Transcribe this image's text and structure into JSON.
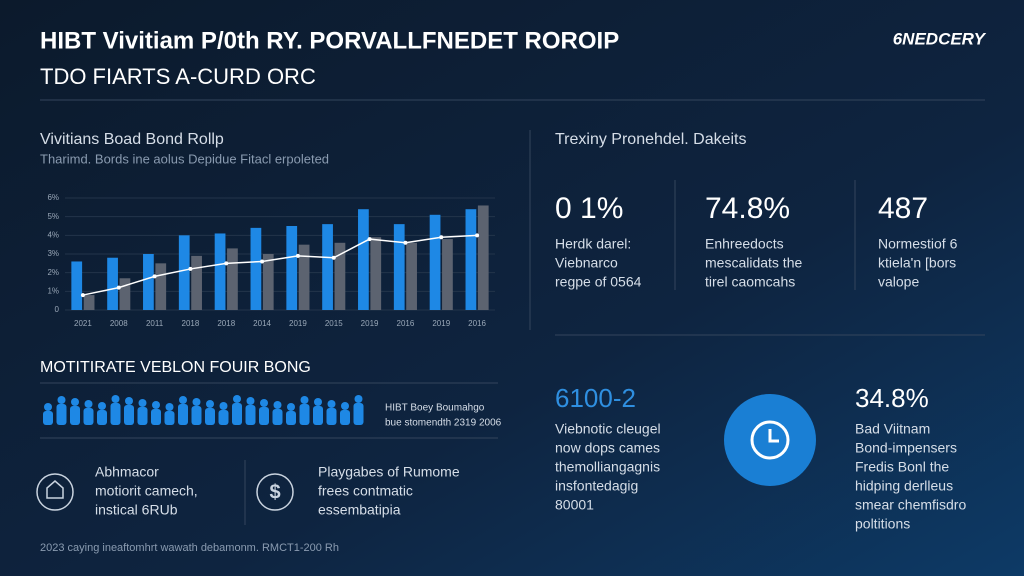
{
  "header": {
    "title_line1": "HIBT Vivitiam P/0th RY. PORVALLFNEDET ROROIP",
    "title_line2": "TDO FIARTS A-CURD ORC",
    "logo": "6NEDCERY"
  },
  "chart_panel": {
    "heading": "Vivitians Boad Bond Rollp",
    "subtitle": "Tharimd. Bords ine aolus Depidue Fitacl erpoleted"
  },
  "chart_data": {
    "type": "bar",
    "categories": [
      "2021",
      "2008",
      "2011",
      "2018",
      "2018",
      "2014",
      "2019",
      "2015",
      "2019",
      "2016",
      "2019",
      "2016"
    ],
    "series": [
      {
        "color": "#1e88e5",
        "values": [
          2.6,
          2.8,
          3.0,
          4.0,
          4.1,
          4.4,
          4.5,
          4.6,
          5.4,
          4.6,
          5.1,
          5.4
        ]
      },
      {
        "color": "#5c6370",
        "values": [
          0.8,
          1.7,
          2.5,
          2.9,
          3.3,
          3.0,
          3.5,
          3.6,
          3.9,
          3.6,
          3.8,
          5.6
        ]
      },
      {
        "type": "line",
        "color": "#ffffff",
        "values": [
          0.8,
          1.2,
          1.8,
          2.2,
          2.5,
          2.6,
          2.9,
          2.8,
          3.8,
          3.6,
          3.9,
          4.0
        ]
      }
    ],
    "ylim": [
      0,
      6
    ],
    "yticks": [
      0,
      {
        "value": 1,
        "label": "1%"
      },
      {
        "value": 2,
        "label": "2%"
      },
      {
        "value": 3,
        "label": "3%"
      },
      {
        "value": 4,
        "label": "4%"
      },
      {
        "value": 5,
        "label": "5%"
      },
      {
        "value": 6,
        "label": "6%"
      }
    ]
  },
  "stats": {
    "heading": "Trexiny Pronehdel. Dakeits",
    "items": [
      {
        "value": "0 1%",
        "lines": [
          "Herdk darel:",
          "Viebnarco",
          "regpe of 0564"
        ]
      },
      {
        "value": "74.8%",
        "lines": [
          "Enhreedocts",
          "mescalidats the",
          "tirel caomcahs"
        ]
      },
      {
        "value": "487",
        "lines": [
          "Normestiof 6",
          "ktiela'n [bors",
          "valope"
        ]
      }
    ]
  },
  "people_panel": {
    "heading": "MOTITIRATE VEBLON FOUIR BONG",
    "caption": [
      "HIBT Boey Boumahgo",
      "bue stomendth 2319 2006"
    ]
  },
  "features": [
    {
      "lines": [
        "Abhmacor",
        "motiorit camech,",
        "instical 6RUb"
      ]
    },
    {
      "lines": [
        "Playgabes of Rumome",
        "frees contmatic",
        "essembatipia"
      ]
    }
  ],
  "footer": "2023 caying ineaftomhrt wawath debamonm. RMCT1-200 Rh",
  "lower_stats": [
    {
      "value": "6100-2",
      "lines": [
        "Viebnotic cleugel",
        "now dops cames",
        "themolliangagnis",
        "insfontedagig",
        "80001"
      ]
    },
    {
      "value": "34.8%",
      "lines": [
        "Bad Viitnam",
        "Bond-impensers",
        "Fredis Bonl the",
        "hidping derlleus",
        "smear chemfisdro",
        "poltitions"
      ]
    }
  ]
}
